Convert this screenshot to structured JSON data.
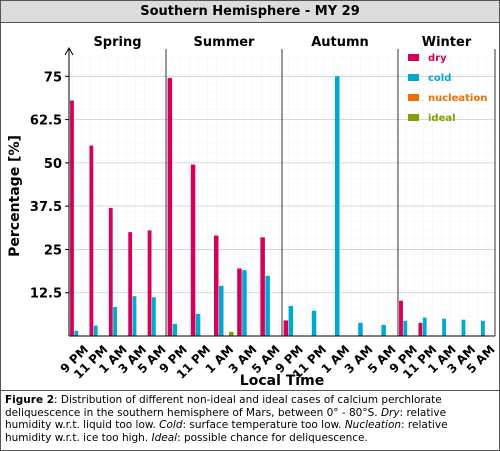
{
  "chart_data": {
    "type": "bar",
    "title": "Southern Hemisphere - MY 29",
    "xlabel": "Local Time",
    "ylabel": "Percentage [%]",
    "panels": [
      "Spring",
      "Summer",
      "Autumn",
      "Winter"
    ],
    "categories": [
      "9 PM",
      "11 PM",
      "1 AM",
      "3 AM",
      "5 AM"
    ],
    "ylim": [
      0,
      80
    ],
    "yticks": [
      12.5,
      25,
      37.5,
      50,
      62.5,
      75
    ],
    "grid": true,
    "legend": "upper right",
    "series": [
      {
        "name": "dry",
        "color": "#d4005a",
        "values": [
          [
            68,
            55,
            37,
            30,
            30.5
          ],
          [
            74.5,
            49.5,
            29,
            19.5,
            28.5
          ],
          [
            4.5,
            0,
            0,
            0,
            0
          ],
          [
            10.2,
            3.8,
            0,
            0,
            0
          ]
        ]
      },
      {
        "name": "cold",
        "color": "#00a9d0",
        "values": [
          [
            1.5,
            3,
            8.4,
            11.5,
            11.2
          ],
          [
            3.5,
            6.4,
            14.5,
            19,
            17.4
          ],
          [
            8.7,
            7.3,
            75,
            3.8,
            3.2
          ],
          [
            4.4,
            5.3,
            5,
            4.7,
            4.4
          ]
        ]
      },
      {
        "name": "nucleation",
        "color": "#f06e00",
        "values": [
          [
            0,
            0,
            0,
            0,
            0
          ],
          [
            0,
            0,
            0,
            0,
            0
          ],
          [
            0,
            0,
            0,
            0,
            0
          ],
          [
            0,
            0,
            0,
            0,
            0
          ]
        ]
      },
      {
        "name": "ideal",
        "color": "#7fa000",
        "values": [
          [
            0,
            0,
            0,
            0,
            0
          ],
          [
            0,
            0,
            1.2,
            0,
            0
          ],
          [
            0,
            0,
            0,
            0,
            0
          ],
          [
            0,
            0,
            0,
            0,
            0
          ]
        ]
      }
    ]
  },
  "caption": [
    "Figure 2",
    ": Distribution of different non-ideal and ideal cases of calcium perchlorate deliquescence in the southern hemisphere of Mars, between 0° - 80°S. ",
    "Dry",
    ": relative humidity w.r.t. liquid too low. ",
    "Cold",
    ": surface temperature too low. ",
    "Nucleation",
    ": relative humidity w.r.t. ice too high. ",
    "Ideal",
    ": possible chance for deliquescence."
  ]
}
